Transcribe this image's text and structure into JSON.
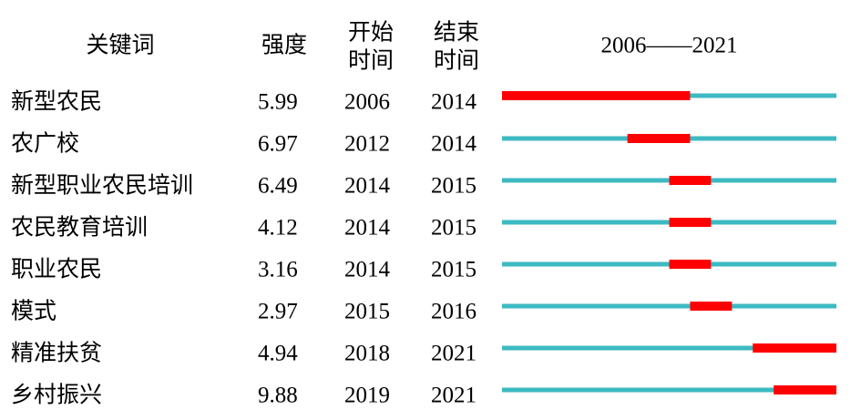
{
  "chart_data": {
    "type": "burst",
    "headers": [
      [
        "关键词"
      ],
      [
        "强度"
      ],
      [
        "开始",
        "时间"
      ],
      [
        "结束",
        "时间"
      ]
    ],
    "timeline": {
      "range": [
        2006,
        2021
      ],
      "label": "2006——2021"
    },
    "base_color": "#3dbac2",
    "burst_color": "#ff0000",
    "rows": [
      {
        "keyword": "新型农民",
        "strength": 5.99,
        "begin": 2006,
        "end": 2014
      },
      {
        "keyword": "农广校",
        "strength": 6.97,
        "begin": 2012,
        "end": 2014
      },
      {
        "keyword": "新型职业农民培训",
        "strength": 6.49,
        "begin": 2014,
        "end": 2015
      },
      {
        "keyword": "农民教育培训",
        "strength": 4.12,
        "begin": 2014,
        "end": 2015
      },
      {
        "keyword": "职业农民",
        "strength": 3.16,
        "begin": 2014,
        "end": 2015
      },
      {
        "keyword": "模式",
        "strength": 2.97,
        "begin": 2015,
        "end": 2016
      },
      {
        "keyword": "精准扶贫",
        "strength": 4.94,
        "begin": 2018,
        "end": 2021
      },
      {
        "keyword": "乡村振兴",
        "strength": 9.88,
        "begin": 2019,
        "end": 2021
      }
    ]
  }
}
